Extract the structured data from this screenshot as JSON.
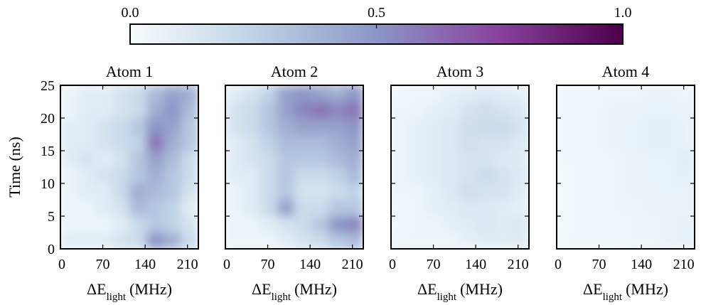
{
  "colorbar": {
    "lim": [
      0,
      1
    ],
    "ticks": [
      {
        "value": 0,
        "label": "0.0"
      },
      {
        "value": 0.5,
        "label": "0.5"
      },
      {
        "value": 1,
        "label": "1.0"
      }
    ],
    "colors": [
      "#f7fcfd",
      "#bfd3e6",
      "#8c96c6",
      "#88419d",
      "#4d004b"
    ]
  },
  "chart_data": [
    {
      "type": "heatmap",
      "title": "Atom 1",
      "ylabel": "Time (ns)",
      "xlabel_symbol": "ΔE",
      "xlabel_sub": "light",
      "xlabel_unit": "(MHz)",
      "xlim": [
        0,
        228
      ],
      "ylim": [
        0,
        25
      ],
      "xticks": [
        0,
        70,
        140,
        210
      ],
      "yticks": [
        0,
        5,
        10,
        15,
        20,
        25
      ],
      "x_edges": [
        0,
        28.5,
        57,
        85.5,
        114,
        142.5,
        171,
        199.5,
        228
      ],
      "y_edges": [
        0,
        2.5,
        5,
        7.5,
        10,
        12.5,
        15,
        17.5,
        20,
        22.5,
        25
      ],
      "z": [
        [
          0.1,
          0.1,
          0.1,
          0.15,
          0.2,
          0.5,
          0.4,
          0.2
        ],
        [
          0.05,
          0.05,
          0.05,
          0.1,
          0.2,
          0.3,
          0.25,
          0.15
        ],
        [
          0.05,
          0.05,
          0.1,
          0.15,
          0.35,
          0.3,
          0.25,
          0.1
        ],
        [
          0.05,
          0.1,
          0.1,
          0.2,
          0.4,
          0.35,
          0.3,
          0.15
        ],
        [
          0.05,
          0.1,
          0.15,
          0.2,
          0.3,
          0.4,
          0.3,
          0.2
        ],
        [
          0.1,
          0.15,
          0.1,
          0.15,
          0.3,
          0.45,
          0.35,
          0.2
        ],
        [
          0.1,
          0.1,
          0.15,
          0.2,
          0.25,
          0.6,
          0.4,
          0.3
        ],
        [
          0.1,
          0.1,
          0.15,
          0.2,
          0.3,
          0.5,
          0.45,
          0.3
        ],
        [
          0.05,
          0.1,
          0.1,
          0.15,
          0.2,
          0.4,
          0.5,
          0.35
        ],
        [
          0.05,
          0.1,
          0.1,
          0.15,
          0.2,
          0.35,
          0.45,
          0.4
        ]
      ]
    },
    {
      "type": "heatmap",
      "title": "Atom 2",
      "xlabel_symbol": "ΔE",
      "xlabel_sub": "light",
      "xlabel_unit": "(MHz)",
      "xlim": [
        0,
        228
      ],
      "ylim": [
        0,
        25
      ],
      "xticks": [
        0,
        70,
        140,
        210
      ],
      "yticks": [
        0,
        5,
        10,
        15,
        20,
        25
      ],
      "x_edges": [
        0,
        28.5,
        57,
        85.5,
        114,
        142.5,
        171,
        199.5,
        228
      ],
      "y_edges": [
        0,
        2.5,
        5,
        7.5,
        10,
        12.5,
        15,
        17.5,
        20,
        22.5,
        25
      ],
      "z": [
        [
          0.05,
          0.05,
          0.05,
          0.1,
          0.15,
          0.2,
          0.3,
          0.35
        ],
        [
          0.05,
          0.05,
          0.1,
          0.15,
          0.2,
          0.3,
          0.5,
          0.55
        ],
        [
          0.05,
          0.1,
          0.2,
          0.45,
          0.2,
          0.2,
          0.3,
          0.3
        ],
        [
          0.05,
          0.1,
          0.2,
          0.3,
          0.15,
          0.15,
          0.2,
          0.25
        ],
        [
          0.1,
          0.1,
          0.2,
          0.3,
          0.2,
          0.2,
          0.25,
          0.35
        ],
        [
          0.1,
          0.15,
          0.2,
          0.3,
          0.3,
          0.3,
          0.35,
          0.4
        ],
        [
          0.1,
          0.15,
          0.25,
          0.35,
          0.35,
          0.35,
          0.4,
          0.45
        ],
        [
          0.15,
          0.2,
          0.3,
          0.4,
          0.45,
          0.45,
          0.45,
          0.5
        ],
        [
          0.15,
          0.2,
          0.3,
          0.45,
          0.55,
          0.6,
          0.55,
          0.6
        ],
        [
          0.1,
          0.15,
          0.25,
          0.45,
          0.5,
          0.45,
          0.4,
          0.5
        ]
      ]
    },
    {
      "type": "heatmap",
      "title": "Atom 3",
      "xlabel_symbol": "ΔE",
      "xlabel_sub": "light",
      "xlabel_unit": "(MHz)",
      "xlim": [
        0,
        228
      ],
      "ylim": [
        0,
        25
      ],
      "xticks": [
        0,
        70,
        140,
        210
      ],
      "yticks": [
        0,
        5,
        10,
        15,
        20,
        25
      ],
      "x_edges": [
        0,
        28.5,
        57,
        85.5,
        114,
        142.5,
        171,
        199.5,
        228
      ],
      "y_edges": [
        0,
        2.5,
        5,
        7.5,
        10,
        12.5,
        15,
        17.5,
        20,
        22.5,
        25
      ],
      "z": [
        [
          0.05,
          0.05,
          0.05,
          0.05,
          0.08,
          0.1,
          0.1,
          0.1
        ],
        [
          0.03,
          0.05,
          0.05,
          0.08,
          0.1,
          0.12,
          0.1,
          0.12
        ],
        [
          0.03,
          0.05,
          0.08,
          0.1,
          0.12,
          0.12,
          0.1,
          0.08
        ],
        [
          0.05,
          0.05,
          0.08,
          0.12,
          0.18,
          0.15,
          0.15,
          0.1
        ],
        [
          0.05,
          0.08,
          0.1,
          0.12,
          0.15,
          0.2,
          0.15,
          0.12
        ],
        [
          0.05,
          0.08,
          0.1,
          0.12,
          0.15,
          0.15,
          0.12,
          0.1
        ],
        [
          0.05,
          0.08,
          0.1,
          0.12,
          0.18,
          0.15,
          0.15,
          0.12
        ],
        [
          0.05,
          0.08,
          0.1,
          0.12,
          0.18,
          0.2,
          0.2,
          0.15
        ],
        [
          0.05,
          0.05,
          0.08,
          0.1,
          0.15,
          0.18,
          0.15,
          0.12
        ],
        [
          0.03,
          0.05,
          0.05,
          0.08,
          0.1,
          0.12,
          0.1,
          0.08
        ]
      ]
    },
    {
      "type": "heatmap",
      "title": "Atom 4",
      "xlabel_symbol": "ΔE",
      "xlabel_sub": "light",
      "xlabel_unit": "(MHz)",
      "xlim": [
        0,
        228
      ],
      "ylim": [
        0,
        25
      ],
      "xticks": [
        0,
        70,
        140,
        210
      ],
      "yticks": [
        0,
        5,
        10,
        15,
        20,
        25
      ],
      "x_edges": [
        0,
        28.5,
        57,
        85.5,
        114,
        142.5,
        171,
        199.5,
        228
      ],
      "y_edges": [
        0,
        2.5,
        5,
        7.5,
        10,
        12.5,
        15,
        17.5,
        20,
        22.5,
        25
      ],
      "z": [
        [
          0.03,
          0.03,
          0.03,
          0.04,
          0.05,
          0.05,
          0.06,
          0.08
        ],
        [
          0.02,
          0.03,
          0.03,
          0.04,
          0.05,
          0.05,
          0.06,
          0.08
        ],
        [
          0.02,
          0.03,
          0.04,
          0.05,
          0.05,
          0.06,
          0.06,
          0.06
        ],
        [
          0.02,
          0.03,
          0.04,
          0.05,
          0.06,
          0.06,
          0.07,
          0.07
        ],
        [
          0.02,
          0.03,
          0.04,
          0.05,
          0.06,
          0.07,
          0.07,
          0.08
        ],
        [
          0.03,
          0.03,
          0.04,
          0.05,
          0.06,
          0.07,
          0.07,
          0.1
        ],
        [
          0.03,
          0.04,
          0.05,
          0.06,
          0.07,
          0.08,
          0.08,
          0.07
        ],
        [
          0.03,
          0.04,
          0.05,
          0.06,
          0.07,
          0.08,
          0.08,
          0.07
        ],
        [
          0.03,
          0.04,
          0.05,
          0.06,
          0.06,
          0.07,
          0.07,
          0.06
        ],
        [
          0.03,
          0.04,
          0.04,
          0.05,
          0.05,
          0.06,
          0.06,
          0.05
        ]
      ]
    }
  ]
}
